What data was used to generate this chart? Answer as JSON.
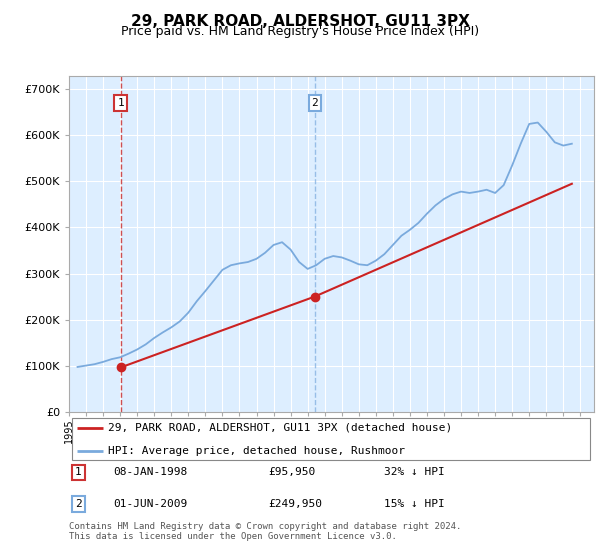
{
  "title": "29, PARK ROAD, ALDERSHOT, GU11 3PX",
  "subtitle": "Price paid vs. HM Land Registry's House Price Index (HPI)",
  "hpi_label": "HPI: Average price, detached house, Rushmoor",
  "price_label": "29, PARK ROAD, ALDERSHOT, GU11 3PX (detached house)",
  "footer": "Contains HM Land Registry data © Crown copyright and database right 2024.\nThis data is licensed under the Open Government Licence v3.0.",
  "sale1": {
    "label": "1",
    "date": "08-JAN-1998",
    "price": 95950,
    "pct": "32% ↓ HPI"
  },
  "sale2": {
    "label": "2",
    "date": "01-JUN-2009",
    "price": 249950,
    "pct": "15% ↓ HPI"
  },
  "sale1_x": 1998.03,
  "sale1_y": 95950,
  "sale2_x": 2009.42,
  "sale2_y": 249950,
  "ylim": [
    0,
    730000
  ],
  "xlim_left": 1995.0,
  "xlim_right": 2025.8,
  "plot_bg": "#ddeeff",
  "grid_color": "#ffffff",
  "hpi_color": "#7aaadd",
  "price_color": "#cc2222",
  "marker_color": "#cc2222",
  "vline1_color": "#cc3333",
  "vline2_color": "#7aaadd",
  "hpi_data_years": [
    1995.5,
    1996.0,
    1996.5,
    1997.0,
    1997.5,
    1998.0,
    1998.5,
    1999.0,
    1999.5,
    2000.0,
    2000.5,
    2001.0,
    2001.5,
    2002.0,
    2002.5,
    2003.0,
    2003.5,
    2004.0,
    2004.5,
    2005.0,
    2005.5,
    2006.0,
    2006.5,
    2007.0,
    2007.5,
    2008.0,
    2008.5,
    2009.0,
    2009.5,
    2010.0,
    2010.5,
    2011.0,
    2011.5,
    2012.0,
    2012.5,
    2013.0,
    2013.5,
    2014.0,
    2014.5,
    2015.0,
    2015.5,
    2016.0,
    2016.5,
    2017.0,
    2017.5,
    2018.0,
    2018.5,
    2019.0,
    2019.5,
    2020.0,
    2020.5,
    2021.0,
    2021.5,
    2022.0,
    2022.5,
    2023.0,
    2023.5,
    2024.0,
    2024.5
  ],
  "hpi_data_values": [
    97000,
    100000,
    103000,
    108000,
    114000,
    118000,
    126000,
    135000,
    146000,
    160000,
    172000,
    183000,
    196000,
    215000,
    240000,
    262000,
    285000,
    308000,
    318000,
    322000,
    325000,
    332000,
    345000,
    362000,
    368000,
    352000,
    325000,
    310000,
    318000,
    332000,
    338000,
    335000,
    328000,
    320000,
    318000,
    328000,
    342000,
    362000,
    382000,
    395000,
    410000,
    430000,
    448000,
    462000,
    472000,
    478000,
    475000,
    478000,
    482000,
    475000,
    492000,
    535000,
    582000,
    625000,
    628000,
    608000,
    585000,
    578000,
    582000
  ],
  "price_data_years": [
    1998.03,
    2009.42,
    2009.42,
    2024.5
  ],
  "price_data_values": [
    95950,
    249950,
    249950,
    495000
  ]
}
